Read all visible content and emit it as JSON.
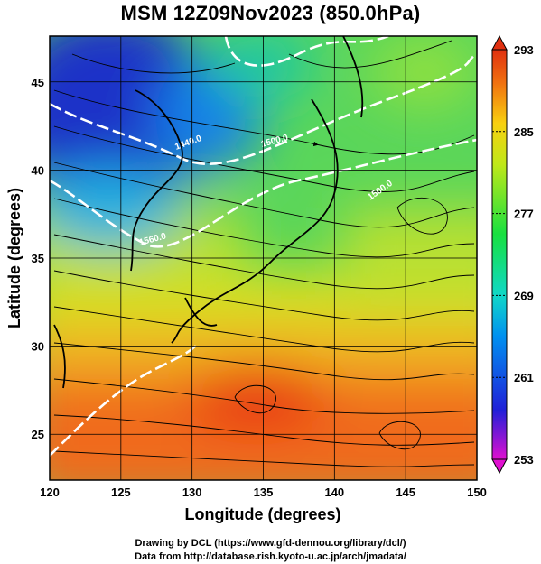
{
  "title": "MSM 12Z09Nov2023 (850.0hPa)",
  "credits": {
    "line1": "Drawing by DCL (https://www.gfd-dennou.org/library/dcl/)",
    "line2": "Data from http://database.rish.kyoto-u.ac.jp/arch/jmadata/"
  },
  "chart_data": {
    "type": "heatmap",
    "xlabel": "Longitude (degrees)",
    "ylabel": "Latitude  (degrees)",
    "xlim": [
      120,
      150
    ],
    "ylim": [
      22.4,
      47.6
    ],
    "x_ticks": [
      "120",
      "125",
      "130",
      "135",
      "140",
      "145",
      "150"
    ],
    "y_ticks": [
      "25",
      "30",
      "35",
      "40",
      "45"
    ],
    "x_tick_values": [
      120,
      125,
      130,
      135,
      140,
      145,
      150
    ],
    "y_tick_values": [
      25,
      30,
      35,
      40,
      45
    ],
    "field": "temperature (shaded) with streamlines",
    "colorbar": {
      "min": 253,
      "max": 293,
      "tick_labels": [
        "293",
        "285",
        "277",
        "269",
        "261",
        "253"
      ],
      "tick_values": [
        293,
        285,
        277,
        269,
        261,
        253
      ],
      "colors": [
        "#e010d0",
        "#2020d8",
        "#0090f0",
        "#10d8c8",
        "#18e040",
        "#c0e818",
        "#f8d010",
        "#f07010",
        "#e03010"
      ]
    },
    "contours": {
      "color": "#ffffff",
      "labels": [
        "1440.0",
        "1500.0",
        "1500.0",
        "1560.0"
      ]
    },
    "grid": true,
    "colors": {
      "cold": "#1c2fd0",
      "cool": "#2bd6c4",
      "mild": "#38d850",
      "warm": "#e8d820",
      "hot": "#e84818"
    }
  }
}
